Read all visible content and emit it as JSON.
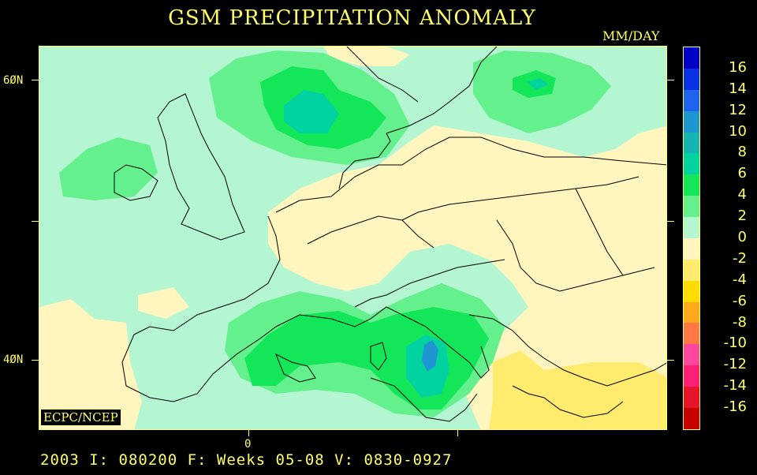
{
  "title": "GSM PRECIPITATION ANOMALY",
  "units": "MM/DAY",
  "badge": "ECPC/NCEP",
  "footer": "2003 I: 080200 F: Weeks 05-08 V: 0830-0927",
  "axes": {
    "lat_labels": [
      "6ØN",
      "4ØN"
    ],
    "lon_labels": [
      "0"
    ]
  },
  "legend": {
    "labels": [
      "16",
      "14",
      "12",
      "10",
      "8",
      "6",
      "4",
      "2",
      "0",
      "-2",
      "-4",
      "-6",
      "-8",
      "-10",
      "-12",
      "-14",
      "-16"
    ],
    "colors": [
      "#0000c8",
      "#0a32e6",
      "#1e64f0",
      "#1e96d2",
      "#14b4b4",
      "#00d2a0",
      "#14e65a",
      "#64f08c",
      "#b4f5d2",
      "#fff5be",
      "#ffeb6e",
      "#ffdc00",
      "#ffaa1e",
      "#ff7846",
      "#ff46a0",
      "#ff1e78",
      "#e6142d",
      "#c80000"
    ]
  },
  "colors": {
    "background": "#000000",
    "text": "#ffff66",
    "coast": "#000000"
  }
}
